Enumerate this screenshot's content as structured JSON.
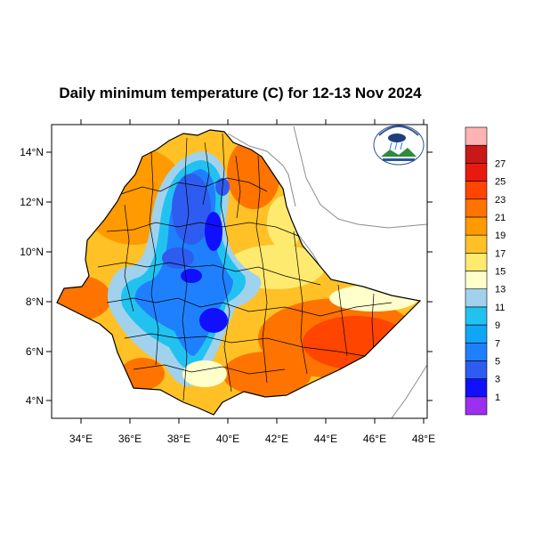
{
  "title": "Daily minimum temperature (C) for 12-13 Nov 2024",
  "lon_ticks": [
    "34°E",
    "36°E",
    "38°E",
    "40°E",
    "42°E",
    "44°E",
    "46°E",
    "48°E"
  ],
  "lat_ticks": [
    "14°N",
    "12°N",
    "10°N",
    "8°N",
    "6°N",
    "4°N"
  ],
  "colorbar": {
    "colors": [
      "#9b30f0",
      "#1010ff",
      "#2e5cf0",
      "#1f80ff",
      "#11a6f5",
      "#22c2f0",
      "#a0d2ee",
      "#ffffcc",
      "#ffea70",
      "#ffc125",
      "#ff9a00",
      "#ff7300",
      "#ff4500",
      "#e81a10",
      "#c81818",
      "#ffb4b4"
    ],
    "labels": [
      "1",
      "3",
      "5",
      "7",
      "9",
      "11",
      "13",
      "15",
      "17",
      "19",
      "21",
      "23",
      "25",
      "27"
    ]
  },
  "logo_icon": "ethiopian-meteorology-institute-logo"
}
